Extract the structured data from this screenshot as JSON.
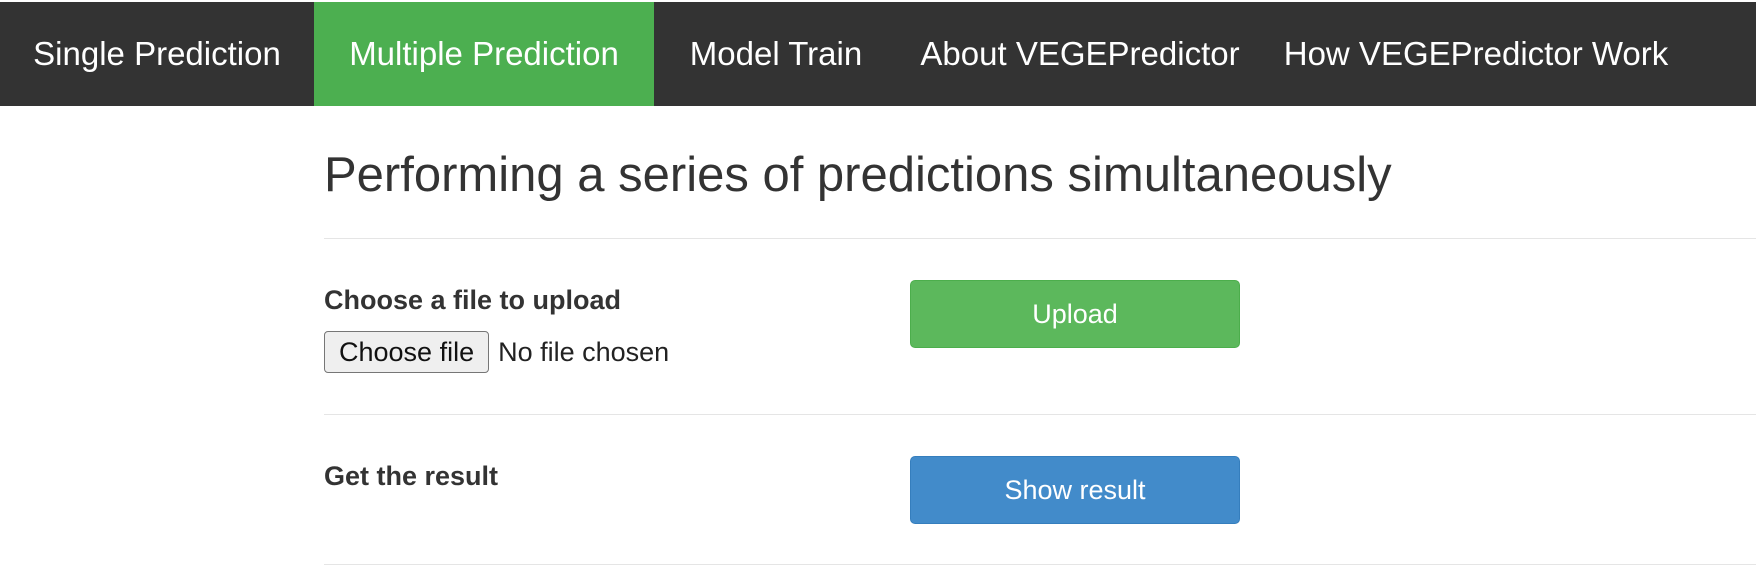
{
  "nav": {
    "items": [
      {
        "label": "Single Prediction"
      },
      {
        "label": "Multiple Prediction"
      },
      {
        "label": "Model Train"
      },
      {
        "label": "About VEGEPredictor"
      },
      {
        "label": "How VEGEPredictor Work"
      }
    ],
    "active_index": 1,
    "colors": {
      "background": "#333333",
      "active": "#4caf50",
      "text": "#ffffff"
    }
  },
  "main": {
    "title": "Performing a series of predictions simultaneously",
    "upload_section": {
      "label": "Choose a file to upload",
      "choose_button_label": "Choose file",
      "file_status": "No file chosen",
      "upload_button_label": "Upload",
      "upload_button_color": "#5cb85c"
    },
    "result_section": {
      "label": "Get the result",
      "show_button_label": "Show result",
      "show_button_color": "#428bca"
    }
  }
}
